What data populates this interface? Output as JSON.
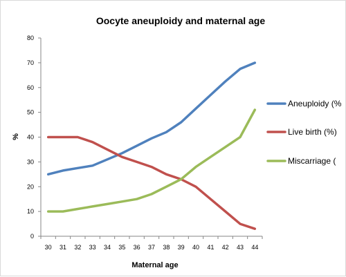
{
  "chart_data": {
    "type": "line",
    "title": "Oocyte aneuploidy and maternal age",
    "xlabel": "Maternal age",
    "ylabel": "%",
    "x": [
      30,
      31,
      32,
      33,
      34,
      35,
      36,
      37,
      38,
      39,
      40,
      41,
      42,
      43,
      44
    ],
    "ylim": [
      0,
      80
    ],
    "yticks": [
      0,
      10,
      20,
      30,
      40,
      50,
      60,
      70,
      80
    ],
    "grid": false,
    "legend_position": "right",
    "series": [
      {
        "name": "Aneuploidy (%",
        "color": "#4f81bd",
        "values": [
          25,
          26.5,
          27.5,
          28.5,
          31,
          33.5,
          36.5,
          39.5,
          42,
          46,
          51.5,
          57,
          62.5,
          67.5,
          70
        ]
      },
      {
        "name": "Live birth  (%)",
        "color": "#c0504d",
        "values": [
          40,
          40,
          40,
          38,
          35,
          32,
          30,
          28,
          25,
          23,
          20,
          15,
          10,
          5,
          3
        ]
      },
      {
        "name": "Miscarriage  (",
        "color": "#9bbb59",
        "values": [
          10,
          10,
          11,
          12,
          13,
          14,
          15,
          17,
          20,
          23,
          28,
          32,
          36,
          40,
          51
        ]
      }
    ]
  }
}
